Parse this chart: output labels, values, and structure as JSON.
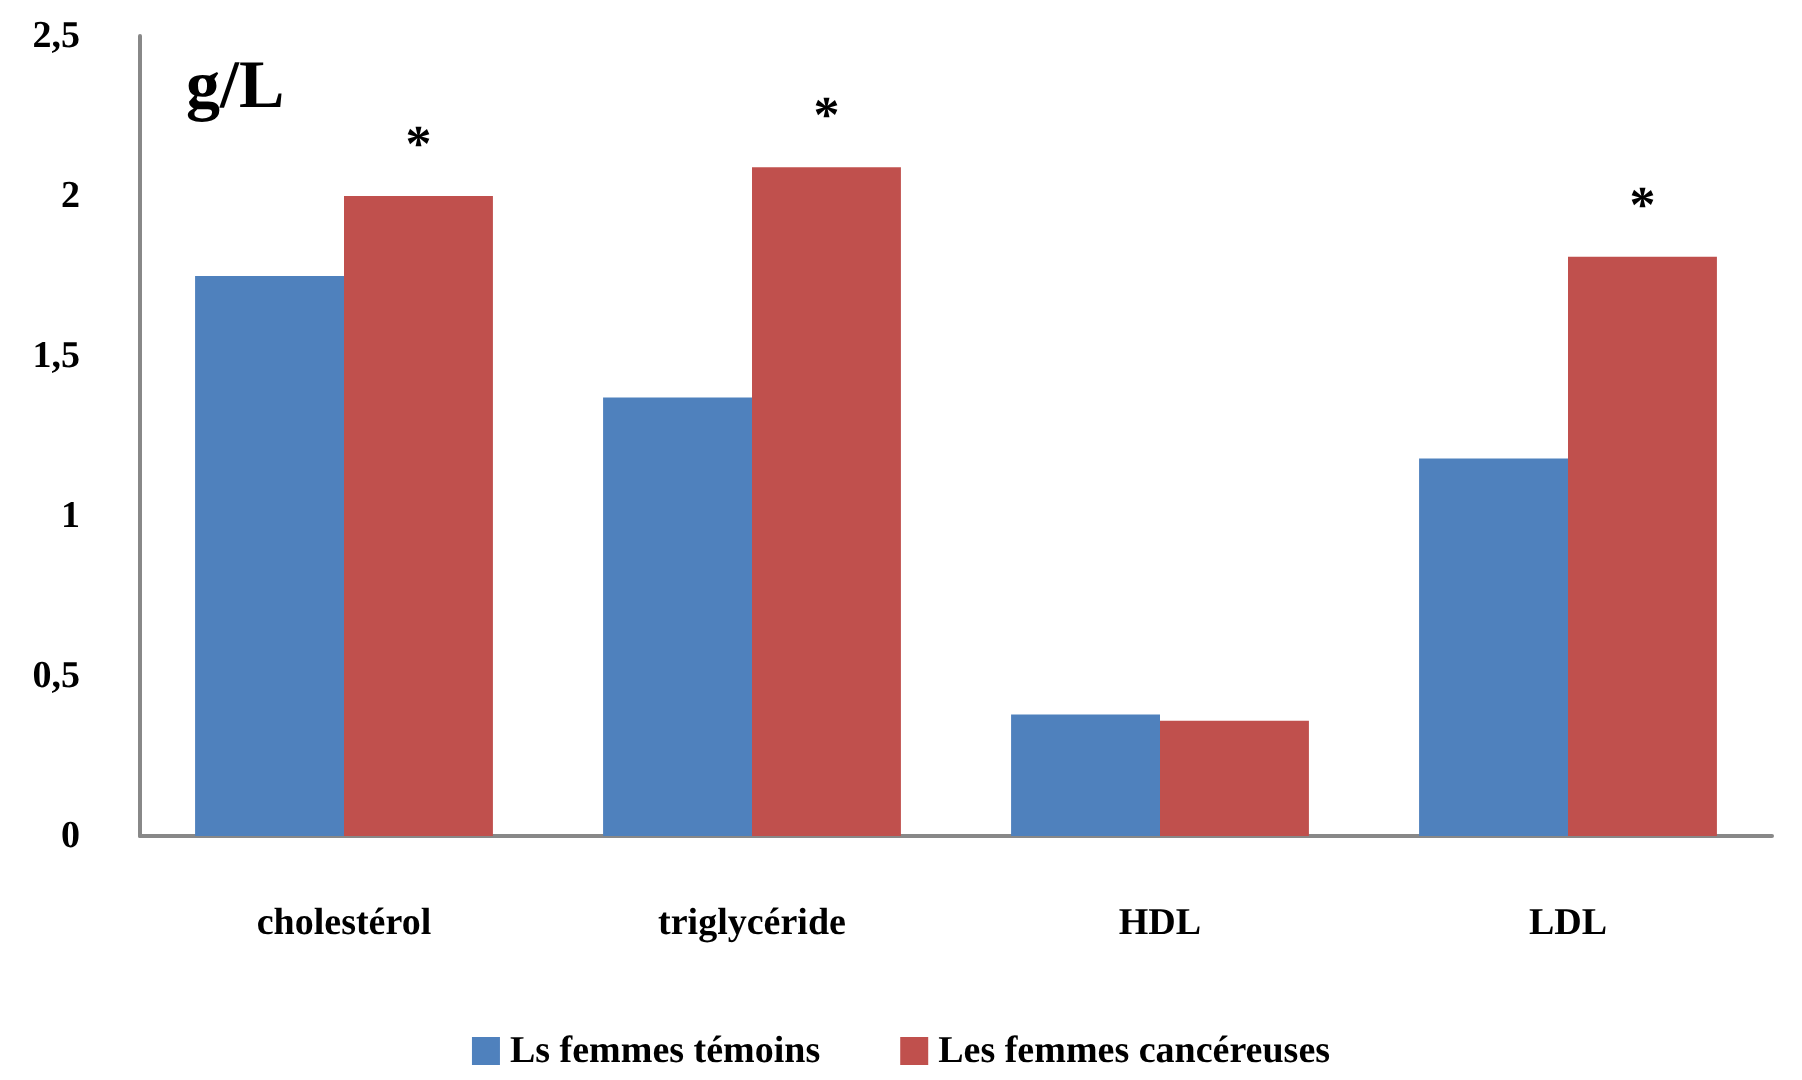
{
  "chart_data": {
    "type": "bar",
    "ylabel": "g/L",
    "categories": [
      "cholestérol",
      "triglycéride",
      "HDL",
      "LDL"
    ],
    "series": [
      {
        "name": "Ls femmes témoins",
        "color": "#4f81bd",
        "values": [
          1.75,
          1.37,
          0.38,
          1.18
        ]
      },
      {
        "name": "Les femmes cancéreuses",
        "color": "#c0504d",
        "values": [
          2.0,
          2.09,
          0.36,
          1.81
        ]
      }
    ],
    "ylim": [
      0,
      2.5
    ],
    "yticks": [
      0,
      {
        "value": 0.5,
        "label": "0,5"
      },
      1,
      {
        "value": 1.5,
        "label": "1,5"
      },
      2,
      {
        "value": 2.5,
        "label": "2,5"
      }
    ],
    "annotations": [
      {
        "text": "*",
        "x": "cholestérol",
        "y": 2.0
      },
      {
        "text": "*",
        "x": "triglycéride",
        "y": 2.09
      },
      {
        "text": "*",
        "x": "LDL",
        "y": 1.81
      }
    ],
    "grid": false,
    "legend": "bottom"
  }
}
